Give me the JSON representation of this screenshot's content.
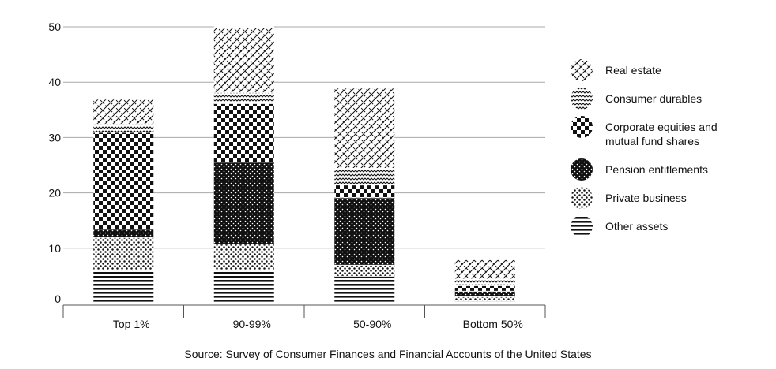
{
  "chart_data": {
    "type": "bar",
    "stacked": true,
    "title": "",
    "xlabel": "",
    "ylabel": "",
    "ylim": [
      0,
      50
    ],
    "yticks": [
      0,
      10,
      20,
      30,
      40,
      50
    ],
    "grid": true,
    "legend_position": "right",
    "categories": [
      "Top 1%",
      "90-99%",
      "50-90%",
      "Bottom 50%"
    ],
    "series": [
      {
        "name": "Other assets",
        "pattern": "horizontal-stripes",
        "values": [
          6,
          6,
          5,
          0.5
        ]
      },
      {
        "name": "Private business",
        "pattern": "coarse-dots",
        "values": [
          6,
          4.8,
          2,
          0.8
        ]
      },
      {
        "name": "Pension entitlements",
        "pattern": "dark-fine-dots",
        "values": [
          1.5,
          14.8,
          12.2,
          1
        ]
      },
      {
        "name": "Corporate equities and mutual fund shares",
        "pattern": "checkerboard",
        "values": [
          17.5,
          10.6,
          2.3,
          1
        ]
      },
      {
        "name": "Consumer durables",
        "pattern": "wavy",
        "values": [
          1.5,
          2,
          3,
          1.2
        ]
      },
      {
        "name": "Real estate",
        "pattern": "diagonal-crosshatch",
        "values": [
          4.5,
          11.8,
          14.5,
          3.5
        ]
      }
    ],
    "legend_order": [
      "Real estate",
      "Consumer durables",
      "Corporate equities and mutual fund shares",
      "Pension entitlements",
      "Private business",
      "Other assets"
    ],
    "source": "Source: Survey of Consumer Finances and Financial Accounts of the United States"
  },
  "colors": {
    "ink": "#111111",
    "grid": "#a8a8a8",
    "axis": "#555555",
    "background": "#ffffff"
  }
}
